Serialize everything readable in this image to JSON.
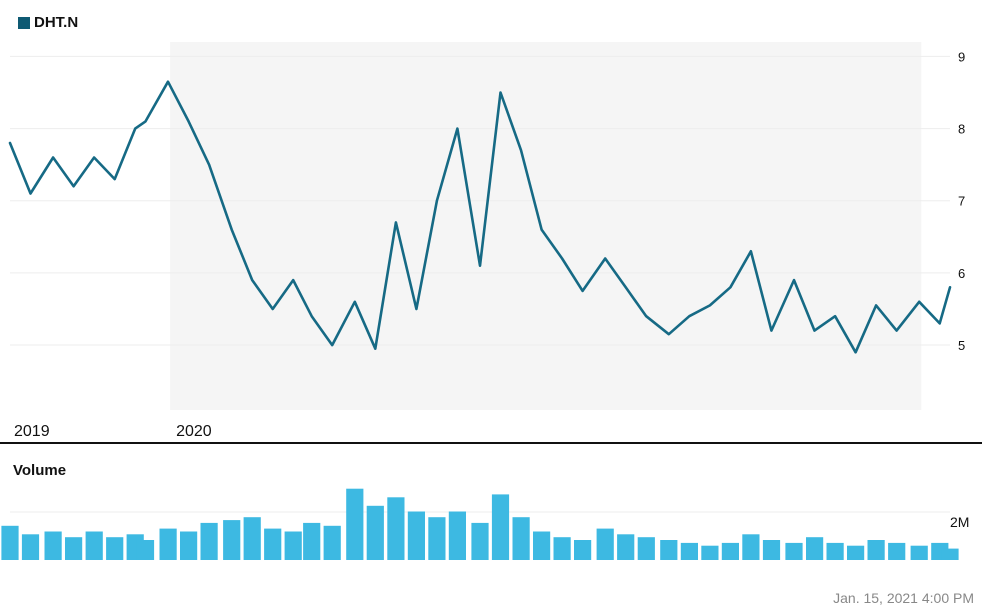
{
  "legend": {
    "symbol": "DHT.N",
    "color": "#0e5a73"
  },
  "volume_title": "Volume",
  "timestamp": "Jan. 15, 2021 4:00 PM",
  "colors": {
    "price_line": "#166a85",
    "volume_bars": "#3db9e2",
    "shade": "#f5f5f5",
    "grid": "#ededed"
  },
  "chart_data": [
    {
      "type": "line",
      "title": "DHT.N",
      "x_tick_labels": [
        "2019",
        "2020"
      ],
      "y_ticks": [
        5,
        6,
        7,
        8,
        9
      ],
      "ylim": [
        4.1,
        9.2
      ],
      "x": [
        "2019-10-15",
        "2019-10-25",
        "2019-11-05",
        "2019-11-15",
        "2019-11-25",
        "2019-12-05",
        "2019-12-15",
        "2019-12-20",
        "2019-12-31",
        "2020-01-10",
        "2020-01-20",
        "2020-01-31",
        "2020-02-10",
        "2020-02-20",
        "2020-03-01",
        "2020-03-10",
        "2020-03-20",
        "2020-03-31",
        "2020-04-10",
        "2020-04-20",
        "2020-04-30",
        "2020-05-10",
        "2020-05-20",
        "2020-05-31",
        "2020-06-10",
        "2020-06-20",
        "2020-06-30",
        "2020-07-10",
        "2020-07-20",
        "2020-07-31",
        "2020-08-10",
        "2020-08-20",
        "2020-08-31",
        "2020-09-10",
        "2020-09-20",
        "2020-09-30",
        "2020-10-10",
        "2020-10-20",
        "2020-10-31",
        "2020-11-10",
        "2020-11-20",
        "2020-11-30",
        "2020-12-10",
        "2020-12-20",
        "2020-12-31",
        "2021-01-10",
        "2021-01-15"
      ],
      "series": [
        {
          "values": [
            7.8,
            7.1,
            7.6,
            7.2,
            7.6,
            7.3,
            8.0,
            8.1,
            8.65,
            8.1,
            7.5,
            6.6,
            5.9,
            5.5,
            5.9,
            5.4,
            5.0,
            5.6,
            4.95,
            6.7,
            5.5,
            7.0,
            8.0,
            6.1,
            8.5,
            7.7,
            6.6,
            6.2,
            5.75,
            6.2,
            5.8,
            5.4,
            5.15,
            5.4,
            5.55,
            5.8,
            6.3,
            5.2,
            5.9,
            5.2,
            5.4,
            4.9,
            5.55,
            5.2,
            5.6,
            5.3,
            5.8
          ]
        }
      ]
    },
    {
      "type": "bar",
      "title": "Volume",
      "y_tick_labels": [
        "2M"
      ],
      "ylim": [
        0,
        2.7
      ],
      "x": [
        "2019-10-15",
        "2019-10-25",
        "2019-11-05",
        "2019-11-15",
        "2019-11-25",
        "2019-12-05",
        "2019-12-15",
        "2019-12-20",
        "2019-12-31",
        "2020-01-10",
        "2020-01-20",
        "2020-01-31",
        "2020-02-10",
        "2020-02-20",
        "2020-03-01",
        "2020-03-10",
        "2020-03-20",
        "2020-03-31",
        "2020-04-10",
        "2020-04-20",
        "2020-04-30",
        "2020-05-10",
        "2020-05-20",
        "2020-05-31",
        "2020-06-10",
        "2020-06-20",
        "2020-06-30",
        "2020-07-10",
        "2020-07-20",
        "2020-07-31",
        "2020-08-10",
        "2020-08-20",
        "2020-08-31",
        "2020-09-10",
        "2020-09-20",
        "2020-09-30",
        "2020-10-10",
        "2020-10-20",
        "2020-10-31",
        "2020-11-10",
        "2020-11-20",
        "2020-11-30",
        "2020-12-10",
        "2020-12-20",
        "2020-12-31",
        "2021-01-10",
        "2021-01-15"
      ],
      "values": [
        1.2,
        0.9,
        1.0,
        0.8,
        1.0,
        0.8,
        0.9,
        0.7,
        1.1,
        1.0,
        1.3,
        1.4,
        1.5,
        1.1,
        1.0,
        1.3,
        1.2,
        2.5,
        1.9,
        2.2,
        1.7,
        1.5,
        1.7,
        1.3,
        2.3,
        1.5,
        1.0,
        0.8,
        0.7,
        1.1,
        0.9,
        0.8,
        0.7,
        0.6,
        0.5,
        0.6,
        0.9,
        0.7,
        0.6,
        0.8,
        0.6,
        0.5,
        0.7,
        0.6,
        0.5,
        0.6,
        0.4
      ]
    }
  ]
}
